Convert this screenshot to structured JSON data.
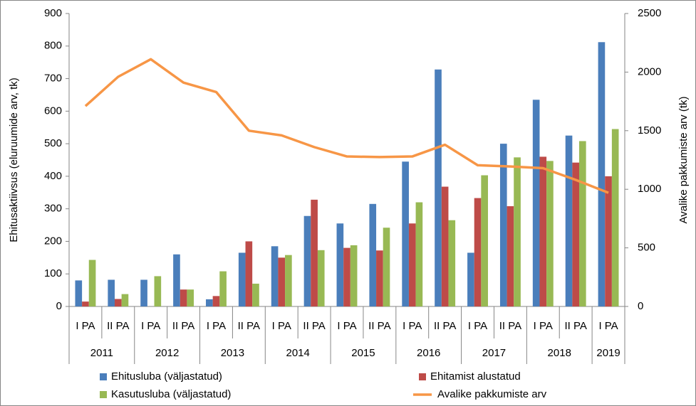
{
  "chart_data": {
    "type": "bar-line",
    "categories": [
      "I PA",
      "II PA",
      "I PA",
      "II PA",
      "I PA",
      "II PA",
      "I PA",
      "II PA",
      "I PA",
      "II PA",
      "I PA",
      "II PA",
      "I PA",
      "II PA",
      "I PA",
      "II PA",
      "I PA"
    ],
    "years": [
      "2011",
      "2012",
      "2013",
      "2014",
      "2015",
      "2016",
      "2017",
      "2018",
      "2019"
    ],
    "y_label": "Ehitusaktiivsus (eluruumide arv, tk)",
    "y2_label": "Avalike pakkumiste arv (tk)",
    "ylim": [
      0,
      900
    ],
    "yticks": [
      0,
      100,
      200,
      300,
      400,
      500,
      600,
      700,
      800,
      900
    ],
    "y2lim": [
      0,
      2500
    ],
    "y2ticks": [
      0,
      500,
      1000,
      1500,
      2000,
      2500
    ],
    "series": [
      {
        "name": "Ehitusluba (väljastatud)",
        "color": "#4a7ebb",
        "kind": "bar",
        "values": [
          80,
          82,
          82,
          160,
          22,
          165,
          185,
          278,
          255,
          315,
          445,
          728,
          165,
          500,
          635,
          525,
          812
        ]
      },
      {
        "name": "Ehitamist alustatud",
        "color": "#be4b48",
        "kind": "bar",
        "values": [
          15,
          23,
          0,
          52,
          32,
          200,
          150,
          328,
          180,
          172,
          255,
          368,
          333,
          308,
          460,
          442,
          400
        ]
      },
      {
        "name": "Kasutusluba (väljastatud)",
        "color": "#98b954",
        "kind": "bar",
        "values": [
          143,
          38,
          93,
          52,
          108,
          70,
          158,
          173,
          188,
          242,
          320,
          265,
          403,
          458,
          447,
          508,
          545
        ]
      },
      {
        "name": "Avalike pakkumiste arv",
        "color": "#f79646",
        "kind": "line",
        "axis": "y2",
        "values": [
          1710,
          1960,
          2110,
          1910,
          1830,
          1500,
          1460,
          1360,
          1280,
          1275,
          1280,
          1380,
          1205,
          1195,
          1180,
          1080,
          970
        ]
      }
    ],
    "legend": "bottom"
  }
}
